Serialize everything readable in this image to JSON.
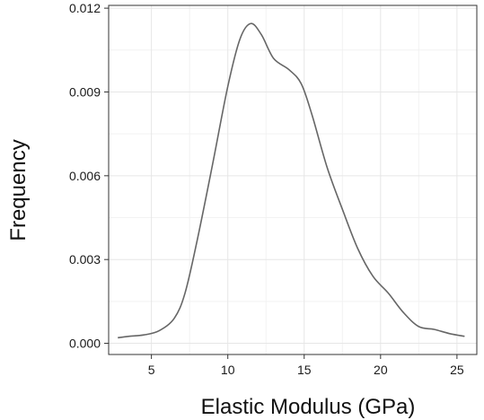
{
  "chart_data": {
    "type": "line",
    "title": "",
    "xlabel": "Elastic Modulus (GPa)",
    "ylabel": "Frequency",
    "xlim": [
      2.2,
      26.3
    ],
    "ylim": [
      -0.0004,
      0.0121
    ],
    "xticks": [
      5,
      10,
      15,
      20,
      25
    ],
    "xtick_labels": [
      "5",
      "10",
      "15",
      "20",
      "25"
    ],
    "yticks": [
      0,
      0.003,
      0.006,
      0.009,
      0.012
    ],
    "ytick_labels": [
      "0.000",
      "0.003",
      "0.006",
      "0.009",
      "0.012"
    ],
    "grid": true,
    "legend": "none",
    "series": [
      {
        "color": "#666666",
        "points": [
          [
            2.8,
            0.0002
          ],
          [
            3.5,
            0.00025
          ],
          [
            4.5,
            0.0003
          ],
          [
            5.5,
            0.00045
          ],
          [
            6.5,
            0.0009
          ],
          [
            7.2,
            0.0018
          ],
          [
            8.0,
            0.0037
          ],
          [
            9.0,
            0.0064
          ],
          [
            10.0,
            0.0092
          ],
          [
            10.8,
            0.0109
          ],
          [
            11.5,
            0.01145
          ],
          [
            12.2,
            0.01105
          ],
          [
            13.0,
            0.0102
          ],
          [
            14.0,
            0.0098
          ],
          [
            14.8,
            0.0093
          ],
          [
            15.5,
            0.0082
          ],
          [
            16.5,
            0.0063
          ],
          [
            17.5,
            0.0048
          ],
          [
            18.5,
            0.0034
          ],
          [
            19.5,
            0.0024
          ],
          [
            20.5,
            0.0018
          ],
          [
            21.5,
            0.0011
          ],
          [
            22.5,
            0.0006
          ],
          [
            23.5,
            0.0005
          ],
          [
            24.5,
            0.00035
          ],
          [
            25.5,
            0.00025
          ]
        ]
      }
    ]
  }
}
